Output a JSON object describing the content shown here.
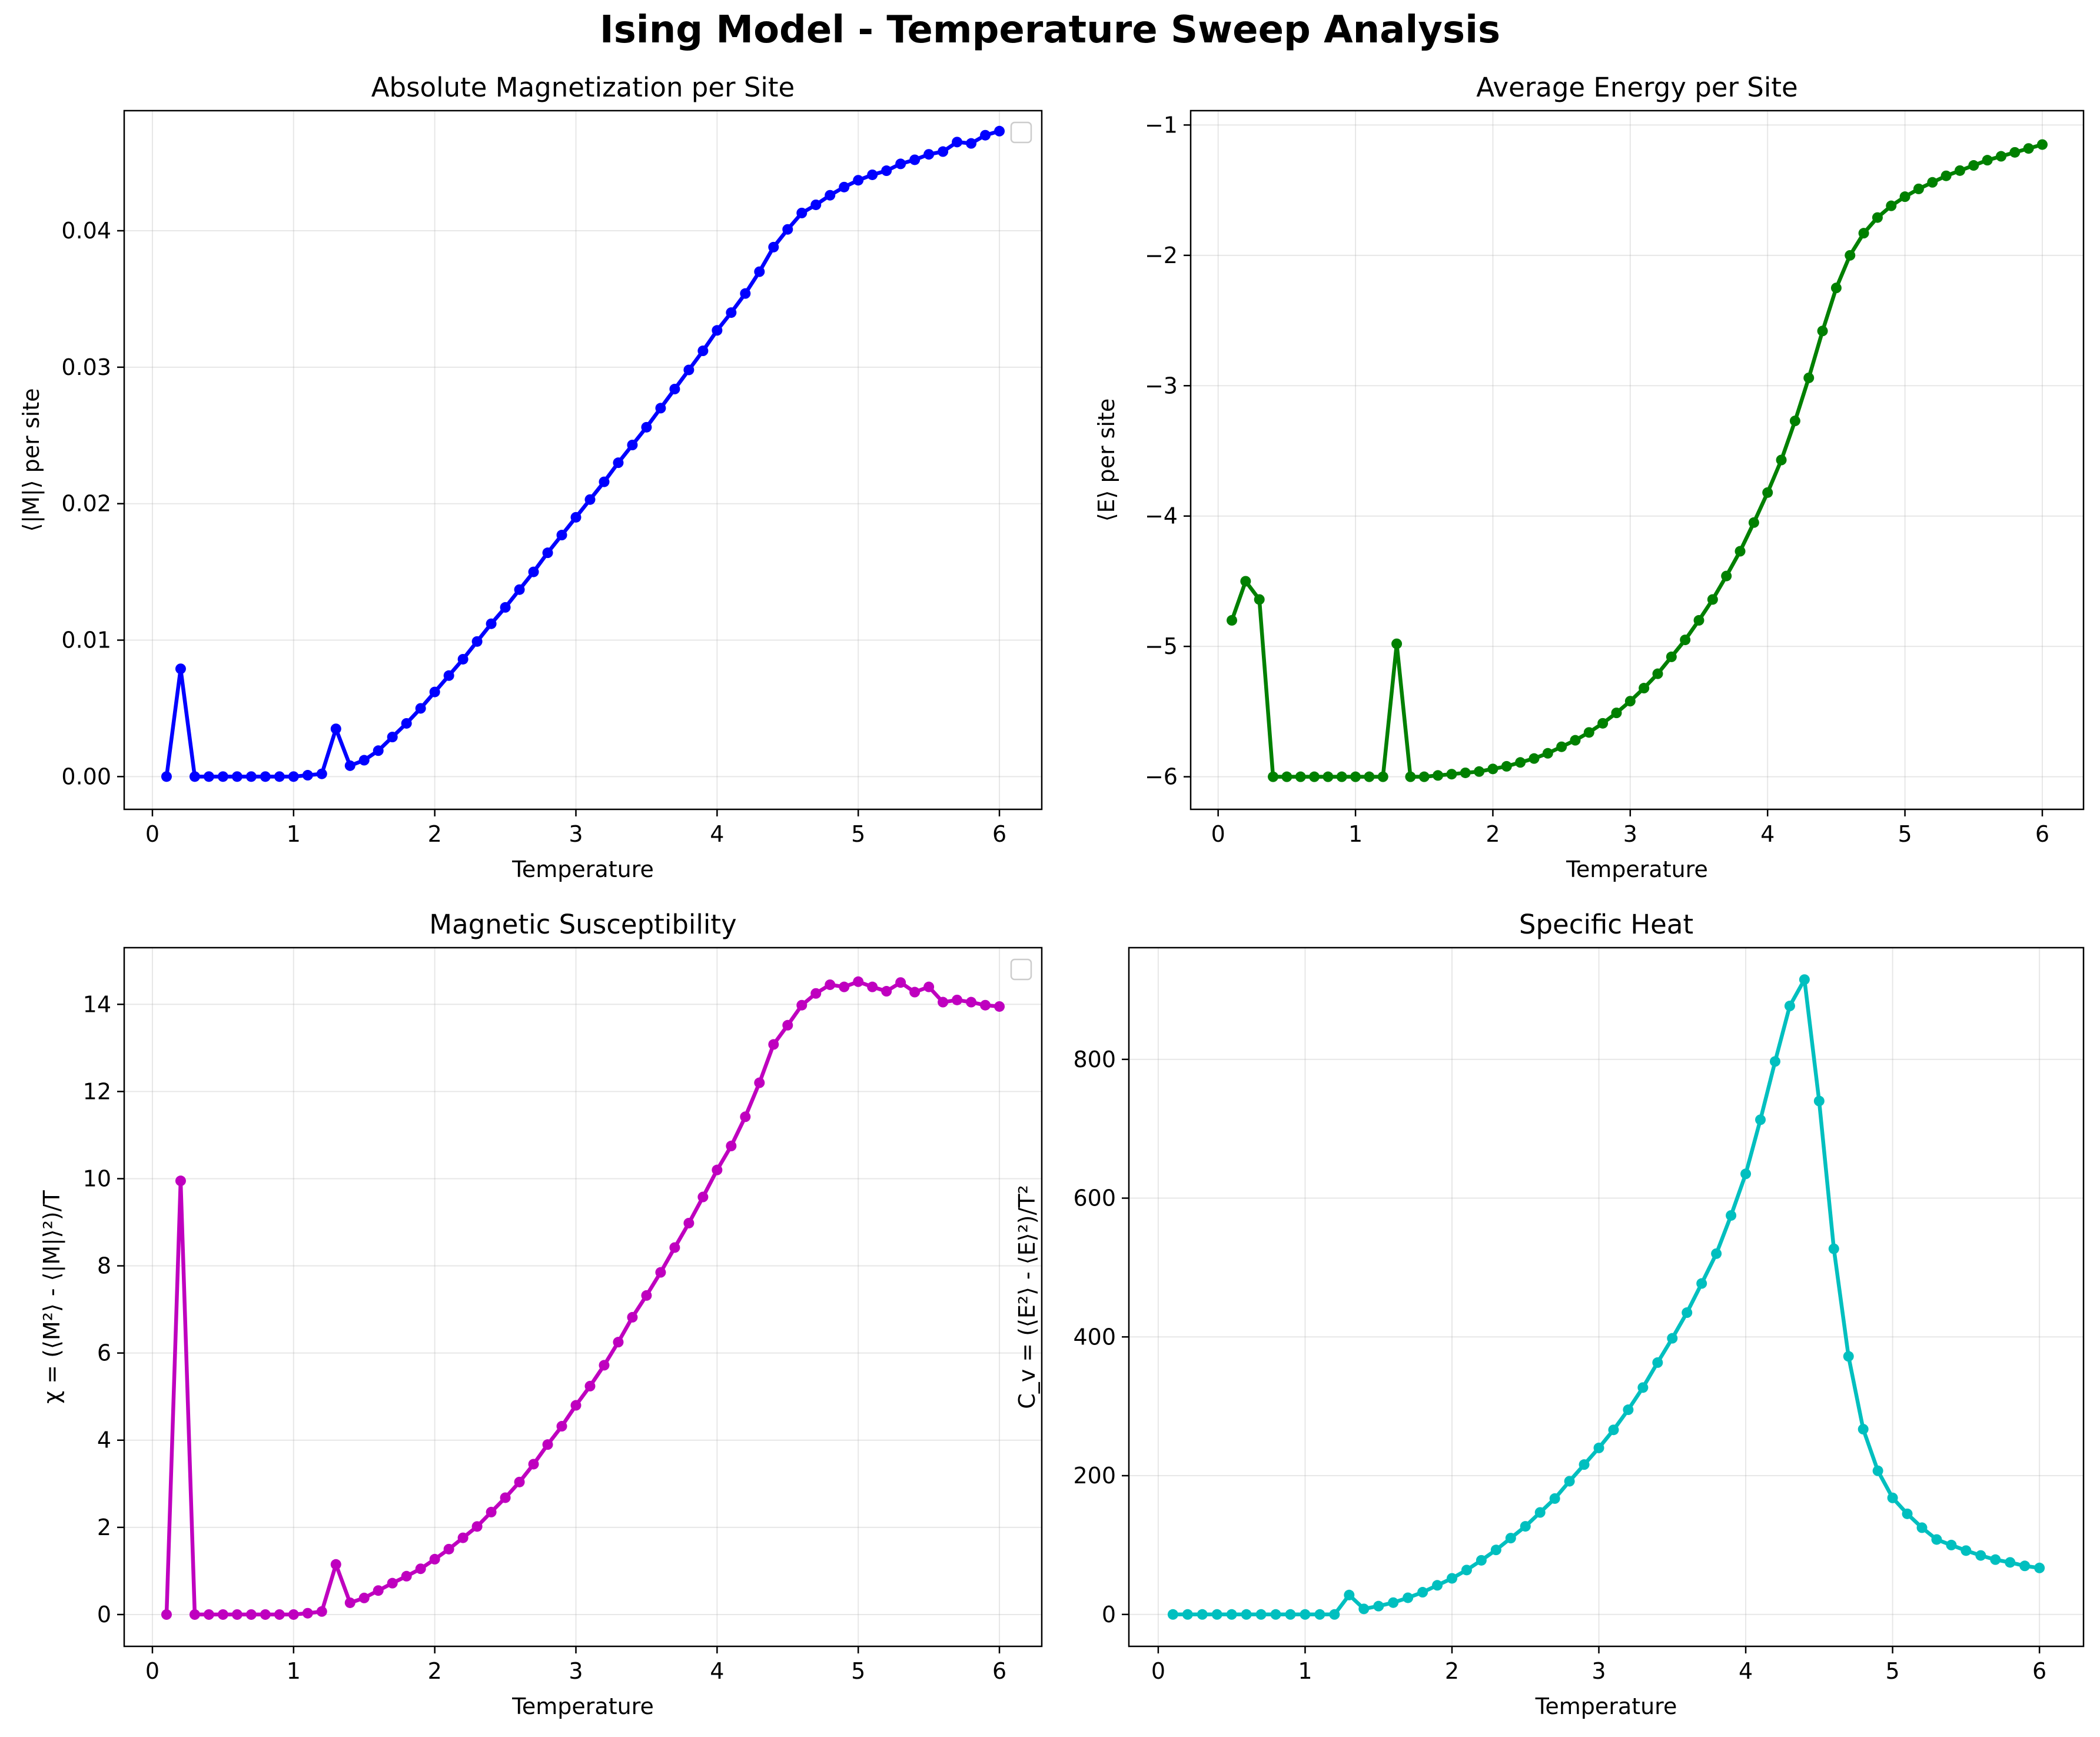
{
  "suptitle": "Ising Model - Temperature Sweep Analysis",
  "colors": {
    "magnetization": "#0000ff",
    "energy": "#008000",
    "susceptibility": "#bf00bf",
    "specific_heat": "#00bfbf"
  },
  "chart_data": [
    {
      "type": "line",
      "title": "Absolute Magnetization per Site",
      "xlabel": "Temperature",
      "ylabel": "⟨|M|⟩ per site",
      "xlim": [
        -0.2,
        6.3
      ],
      "ylim": [
        -0.0024,
        0.0488
      ],
      "xticks": [
        "0",
        "1",
        "2",
        "3",
        "4",
        "5",
        "6"
      ],
      "yticks": [
        "0.00",
        "0.01",
        "0.02",
        "0.03",
        "0.04"
      ],
      "grid": true,
      "legend": "top-right",
      "series": [
        {
          "x": [
            0.1,
            0.2,
            0.3,
            0.4,
            0.5,
            0.6,
            0.7,
            0.8,
            0.9,
            1.0,
            1.1,
            1.2,
            1.3,
            1.4,
            1.5,
            1.6,
            1.7,
            1.8,
            1.9,
            2.0,
            2.1,
            2.2,
            2.3,
            2.4,
            2.5,
            2.6,
            2.7,
            2.8,
            2.9,
            3.0,
            3.1,
            3.2,
            3.3,
            3.4,
            3.5,
            3.6,
            3.7,
            3.8,
            3.9,
            4.0,
            4.1,
            4.2,
            4.3,
            4.4,
            4.5,
            4.6,
            4.7,
            4.8,
            4.9,
            5.0,
            5.1,
            5.2,
            5.3,
            5.4,
            5.5,
            5.6,
            5.7,
            5.8,
            5.9,
            6.0
          ],
          "y": [
            0.0,
            0.0079,
            0.0,
            0.0,
            0.0,
            0.0,
            0.0,
            0.0,
            0.0,
            0.0,
            0.0001,
            0.0002,
            0.0035,
            0.0008,
            0.0012,
            0.0019,
            0.0029,
            0.0039,
            0.005,
            0.0062,
            0.0074,
            0.0086,
            0.0099,
            0.0112,
            0.0124,
            0.0137,
            0.015,
            0.0164,
            0.0177,
            0.019,
            0.0203,
            0.0216,
            0.023,
            0.0243,
            0.0256,
            0.027,
            0.0284,
            0.0298,
            0.0312,
            0.0327,
            0.034,
            0.0354,
            0.037,
            0.0388,
            0.0401,
            0.0413,
            0.0419,
            0.0426,
            0.0432,
            0.0437,
            0.0441,
            0.0444,
            0.0449,
            0.0452,
            0.0456,
            0.0458,
            0.0465,
            0.0464,
            0.047,
            0.0473
          ]
        }
      ]
    },
    {
      "type": "line",
      "title": "Average Energy per Site",
      "xlabel": "Temperature",
      "ylabel": "⟨E⟩ per site",
      "xlim": [
        -0.2,
        6.3
      ],
      "ylim": [
        -6.25,
        -0.89
      ],
      "xticks": [
        "0",
        "1",
        "2",
        "3",
        "4",
        "5",
        "6"
      ],
      "yticks": [
        "−6",
        "−5",
        "−4",
        "−3",
        "−2",
        "−1"
      ],
      "grid": true,
      "series": [
        {
          "x": [
            0.1,
            0.2,
            0.3,
            0.4,
            0.5,
            0.6,
            0.7,
            0.8,
            0.9,
            1.0,
            1.1,
            1.2,
            1.3,
            1.4,
            1.5,
            1.6,
            1.7,
            1.8,
            1.9,
            2.0,
            2.1,
            2.2,
            2.3,
            2.4,
            2.5,
            2.6,
            2.7,
            2.8,
            2.9,
            3.0,
            3.1,
            3.2,
            3.3,
            3.4,
            3.5,
            3.6,
            3.7,
            3.8,
            3.9,
            4.0,
            4.1,
            4.2,
            4.3,
            4.4,
            4.5,
            4.6,
            4.7,
            4.8,
            4.9,
            5.0,
            5.1,
            5.2,
            5.3,
            5.4,
            5.5,
            5.6,
            5.7,
            5.8,
            5.9,
            6.0
          ],
          "y": [
            -4.8,
            -4.5,
            -4.64,
            -6.0,
            -6.0,
            -6.0,
            -6.0,
            -6.0,
            -6.0,
            -6.0,
            -6.0,
            -6.0,
            -4.98,
            -6.0,
            -6.0,
            -5.99,
            -5.98,
            -5.97,
            -5.96,
            -5.94,
            -5.92,
            -5.89,
            -5.86,
            -5.82,
            -5.77,
            -5.72,
            -5.66,
            -5.59,
            -5.51,
            -5.42,
            -5.32,
            -5.21,
            -5.08,
            -4.95,
            -4.8,
            -4.64,
            -4.46,
            -4.27,
            -4.05,
            -3.82,
            -3.57,
            -3.27,
            -2.94,
            -2.58,
            -2.25,
            -2.0,
            -1.83,
            -1.71,
            -1.62,
            -1.55,
            -1.49,
            -1.44,
            -1.39,
            -1.35,
            -1.31,
            -1.27,
            -1.24,
            -1.21,
            -1.18,
            -1.15
          ]
        }
      ]
    },
    {
      "type": "line",
      "title": "Magnetic Susceptibility",
      "xlabel": "Temperature",
      "ylabel": "χ = (⟨M²⟩ - ⟨|M|⟩²)/T",
      "xlim": [
        -0.2,
        6.3
      ],
      "ylim": [
        -0.73,
        15.3
      ],
      "xticks": [
        "0",
        "1",
        "2",
        "3",
        "4",
        "5",
        "6"
      ],
      "yticks": [
        "0",
        "2",
        "4",
        "6",
        "8",
        "10",
        "12",
        "14"
      ],
      "grid": true,
      "legend": "top-right",
      "series": [
        {
          "x": [
            0.1,
            0.2,
            0.3,
            0.4,
            0.5,
            0.6,
            0.7,
            0.8,
            0.9,
            1.0,
            1.1,
            1.2,
            1.3,
            1.4,
            1.5,
            1.6,
            1.7,
            1.8,
            1.9,
            2.0,
            2.1,
            2.2,
            2.3,
            2.4,
            2.5,
            2.6,
            2.7,
            2.8,
            2.9,
            3.0,
            3.1,
            3.2,
            3.3,
            3.4,
            3.5,
            3.6,
            3.7,
            3.8,
            3.9,
            4.0,
            4.1,
            4.2,
            4.3,
            4.4,
            4.5,
            4.6,
            4.7,
            4.8,
            4.9,
            5.0,
            5.1,
            5.2,
            5.3,
            5.4,
            5.5,
            5.6,
            5.7,
            5.8,
            5.9,
            6.0
          ],
          "y": [
            0.0,
            9.95,
            0.0,
            0.0,
            0.0,
            0.0,
            0.0,
            0.0,
            0.0,
            0.0,
            0.03,
            0.07,
            1.15,
            0.27,
            0.38,
            0.55,
            0.72,
            0.88,
            1.05,
            1.27,
            1.5,
            1.76,
            2.02,
            2.35,
            2.68,
            3.04,
            3.45,
            3.9,
            4.32,
            4.8,
            5.24,
            5.72,
            6.25,
            6.82,
            7.32,
            7.85,
            8.42,
            8.98,
            9.58,
            10.2,
            10.75,
            11.42,
            12.2,
            13.08,
            13.52,
            13.98,
            14.25,
            14.45,
            14.4,
            14.52,
            14.4,
            14.3,
            14.5,
            14.28,
            14.4,
            14.05,
            14.1,
            14.05,
            13.98,
            13.95
          ]
        }
      ]
    },
    {
      "type": "line",
      "title": "Specific Heat",
      "xlabel": "Temperature",
      "ylabel": "C_v = (⟨E²⟩ - ⟨E⟩²)/T²",
      "xlim": [
        -0.2,
        6.3
      ],
      "ylim": [
        -46,
        961
      ],
      "xticks": [
        "0",
        "1",
        "2",
        "3",
        "4",
        "5",
        "6"
      ],
      "yticks": [
        "0",
        "200",
        "400",
        "600",
        "800"
      ],
      "grid": true,
      "series": [
        {
          "x": [
            0.1,
            0.2,
            0.3,
            0.4,
            0.5,
            0.6,
            0.7,
            0.8,
            0.9,
            1.0,
            1.1,
            1.2,
            1.3,
            1.4,
            1.5,
            1.6,
            1.7,
            1.8,
            1.9,
            2.0,
            2.1,
            2.2,
            2.3,
            2.4,
            2.5,
            2.6,
            2.7,
            2.8,
            2.9,
            3.0,
            3.1,
            3.2,
            3.3,
            3.4,
            3.5,
            3.6,
            3.7,
            3.8,
            3.9,
            4.0,
            4.1,
            4.2,
            4.3,
            4.4,
            4.5,
            4.6,
            4.7,
            4.8,
            4.9,
            5.0,
            5.1,
            5.2,
            5.3,
            5.4,
            5.5,
            5.6,
            5.7,
            5.8,
            5.9,
            6.0
          ],
          "y": [
            0,
            0,
            0,
            0,
            0,
            0,
            0,
            0,
            0,
            0,
            0,
            0,
            28,
            8,
            12,
            17,
            24,
            32,
            42,
            52,
            64,
            78,
            93,
            110,
            127,
            147,
            167,
            192,
            216,
            240,
            266,
            295,
            327,
            363,
            398,
            435,
            477,
            520,
            575,
            635,
            713,
            797,
            877,
            915,
            740,
            527,
            372,
            267,
            207,
            168,
            145,
            125,
            108,
            100,
            92,
            85,
            79,
            75,
            70,
            67
          ]
        }
      ]
    }
  ]
}
